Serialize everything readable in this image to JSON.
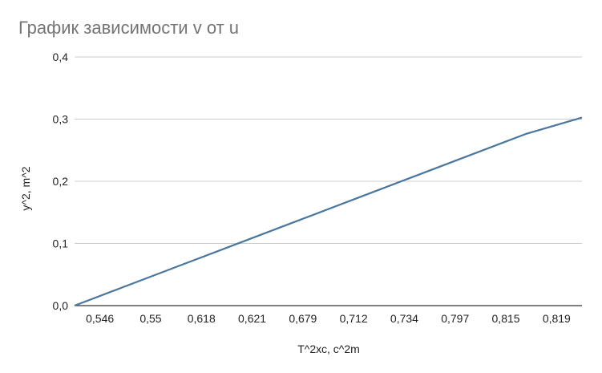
{
  "chart_data": {
    "type": "line",
    "title": "График зависимости v от u",
    "xlabel": "T^2хс, с^2m",
    "ylabel": "y^2, m^2",
    "categories": [
      "0,546",
      "0,55",
      "0,618",
      "0,621",
      "0,679",
      "0,712",
      "0,734",
      "0,797",
      "0,815",
      "0,819"
    ],
    "series": [
      {
        "values": [
          0.0,
          0.0345,
          0.069,
          0.1035,
          0.138,
          0.1725,
          0.207,
          0.2415,
          0.276,
          0.3025
        ]
      }
    ],
    "y_ticks": [
      "0,0",
      "0,1",
      "0,2",
      "0,3",
      "0,4"
    ],
    "ylim": [
      0,
      0.4
    ],
    "grid": true,
    "legend": "none",
    "colors": {
      "line": "#4a76a0",
      "grid": "#cccccc",
      "title": "#757575",
      "text": "#222222"
    }
  }
}
